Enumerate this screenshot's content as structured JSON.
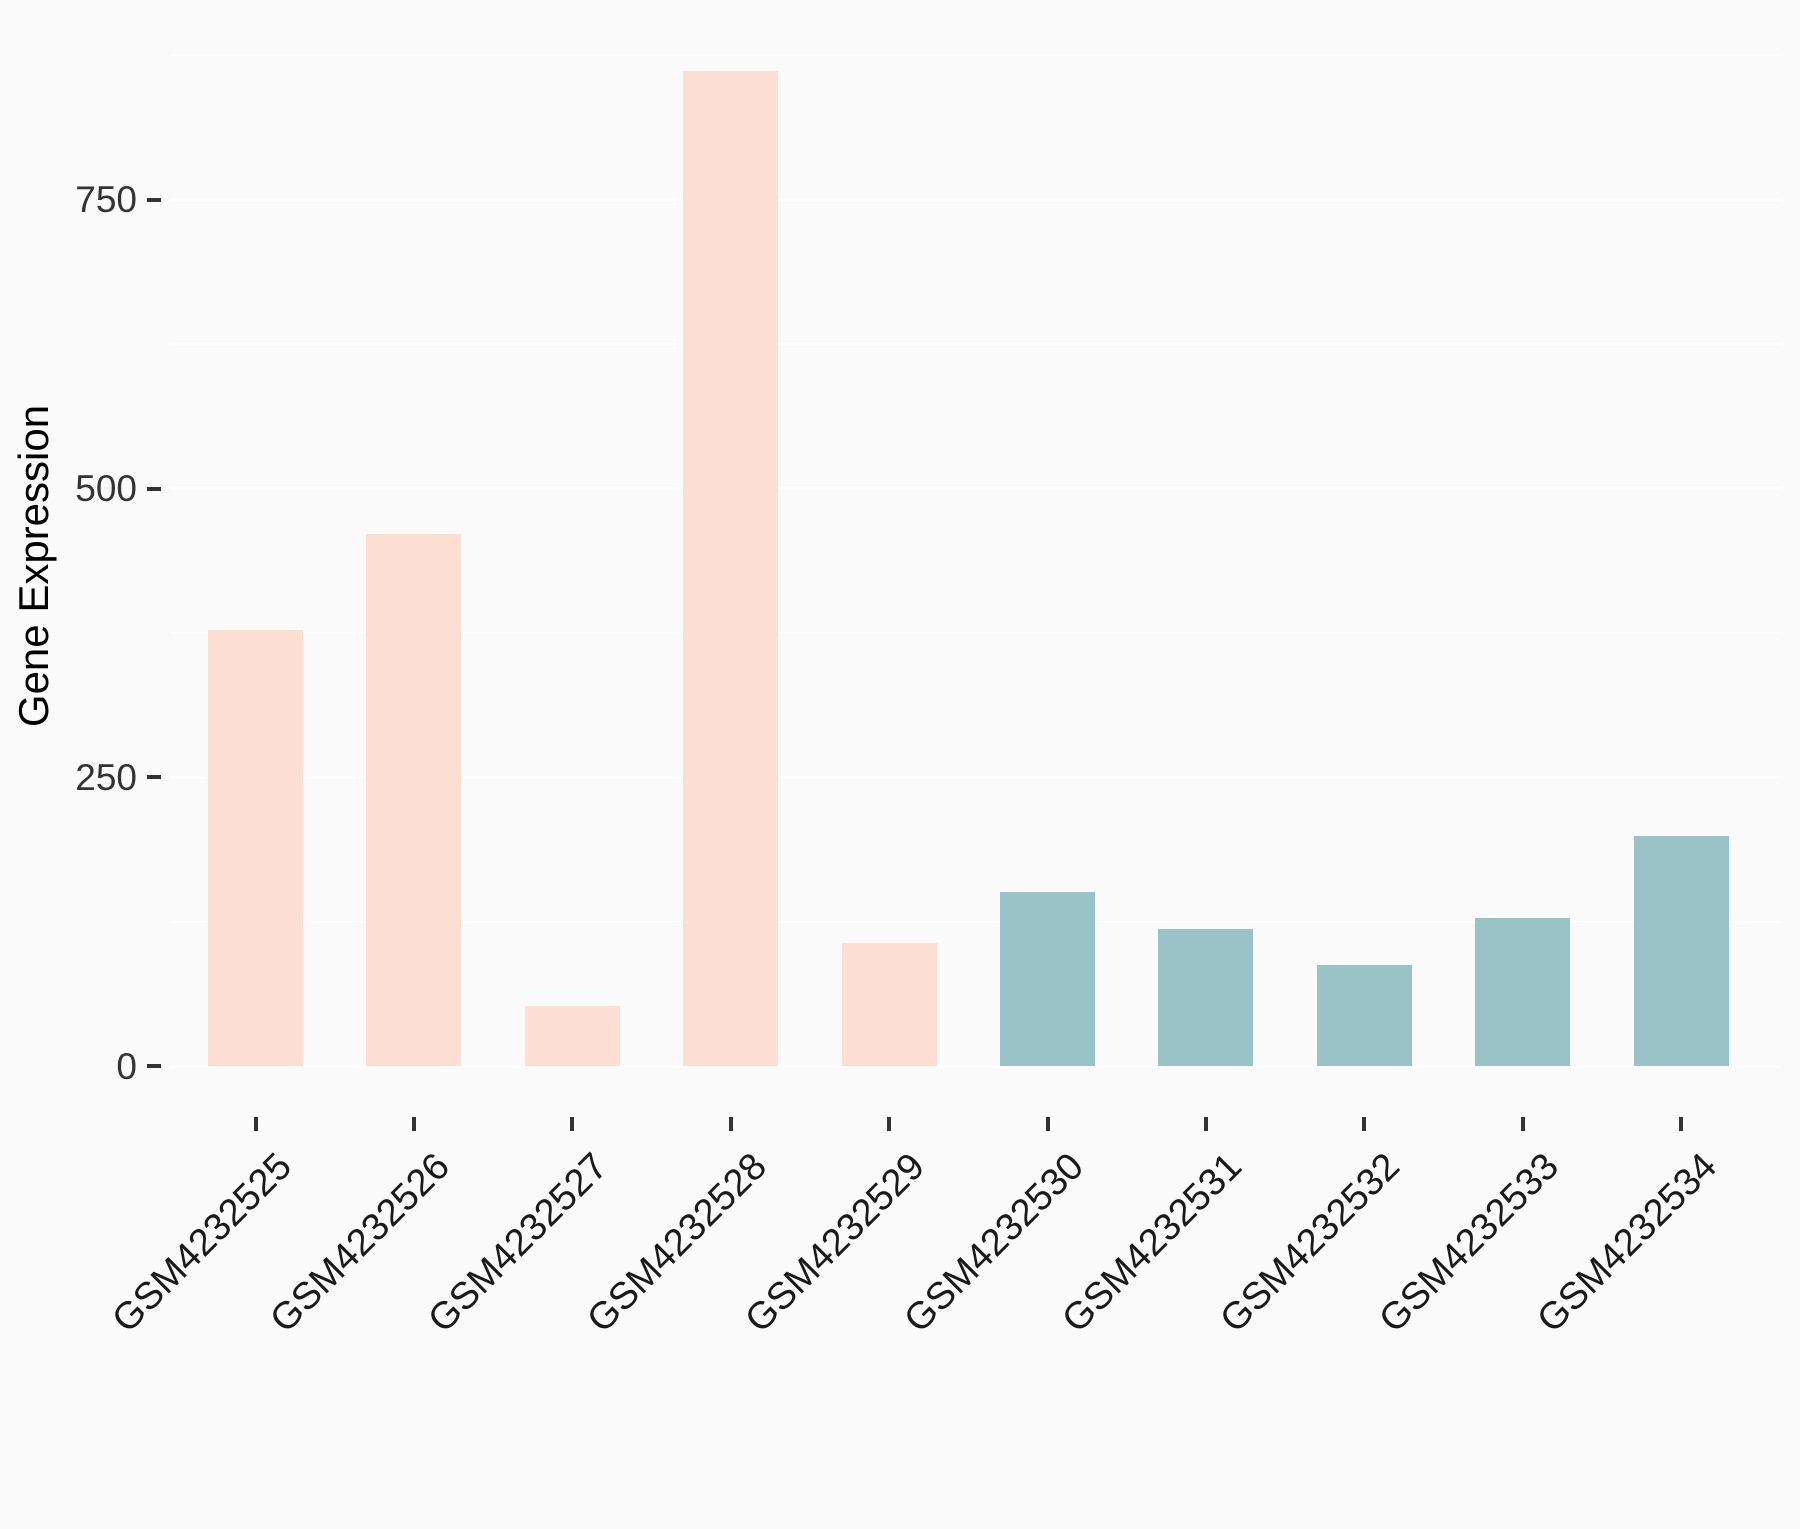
{
  "chart_data": {
    "type": "bar",
    "title": "",
    "xlabel": "",
    "ylabel": "Gene Expression",
    "categories": [
      "GSM4232525",
      "GSM4232526",
      "GSM4232527",
      "GSM4232528",
      "GSM4232529",
      "GSM4232530",
      "GSM4232531",
      "GSM4232532",
      "GSM4232533",
      "GSM4232534"
    ],
    "values": [
      378,
      461,
      52,
      862,
      107,
      151,
      119,
      88,
      128,
      199
    ],
    "bar_groups": [
      "pink",
      "pink",
      "pink",
      "pink",
      "pink",
      "teal",
      "teal",
      "teal",
      "teal",
      "teal"
    ],
    "group_colors": {
      "pink": "#fcded2",
      "teal": "#99c3c6"
    },
    "yticks_major": [
      0,
      250,
      500,
      750
    ],
    "yticks_minor": [
      125,
      375,
      625,
      875
    ],
    "ylim": [
      -44,
      904
    ],
    "grid": "major-and-minor-white-on-light-gray",
    "legend": "none",
    "background_color": "#fafafa",
    "gridline_color": "#ffffff",
    "tick_color": "#333333",
    "axis_title_color": "#000000"
  }
}
